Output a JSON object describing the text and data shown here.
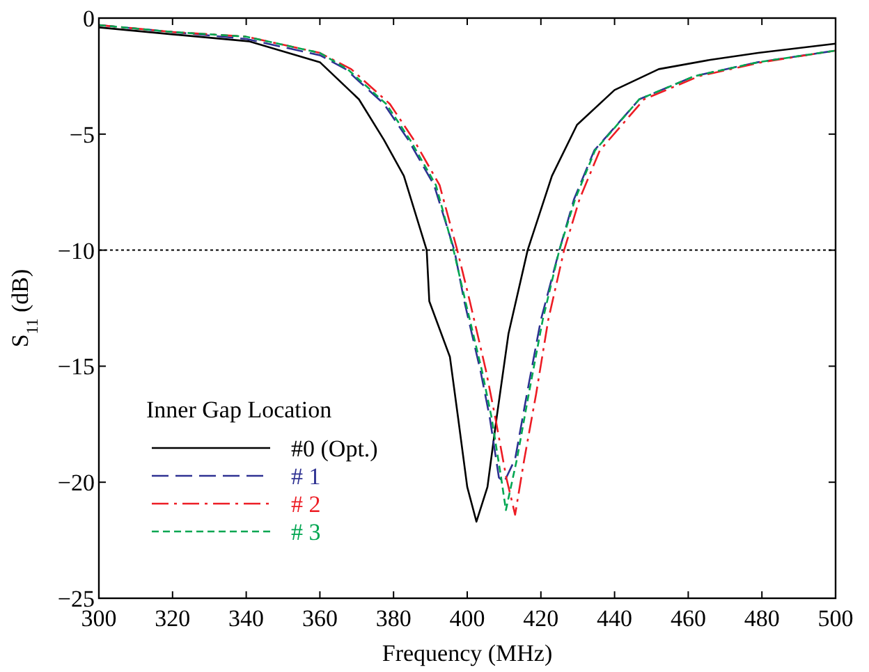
{
  "chart_data": {
    "type": "line",
    "xlabel": "Frequency  (MHz)",
    "ylabel": "S$_{11}$ (dB)",
    "legend_title": "Inner Gap Location",
    "legend": "bottom left",
    "xlim": [
      300,
      500
    ],
    "xticks": [
      300,
      320,
      340,
      360,
      380,
      400,
      420,
      440,
      460,
      480,
      500
    ],
    "ylim": [
      -25,
      0
    ],
    "yticks": [
      -25,
      -20,
      -15,
      -10,
      -5,
      0
    ],
    "grid": false,
    "ref_lines": [
      {
        "axis": "y",
        "value": -10,
        "color": "#000000",
        "line_style": "dotted"
      }
    ],
    "series": [
      {
        "name": "#0 (Opt.)",
        "color": "#000000",
        "line_style": "solid",
        "x": [
          300,
          320,
          340.7,
          360,
          370.6,
          377.4,
          382.8,
          389,
          389.7,
          395.3,
          397.5,
          400,
          402.5,
          405.5,
          408,
          411.2,
          416.4,
          423,
          429.8,
          440,
          452,
          466,
          479,
          500
        ],
        "values": [
          -0.4,
          -0.7,
          -1.0,
          -1.9,
          -3.5,
          -5.25,
          -6.8,
          -10,
          -12.2,
          -14.6,
          -17.2,
          -20.2,
          -21.7,
          -20.2,
          -17.2,
          -13.6,
          -10,
          -6.8,
          -4.6,
          -3.1,
          -2.2,
          -1.8,
          -1.5,
          -1.1
        ]
      },
      {
        "name": "# 1",
        "color": "#2e3192",
        "line_style": "dashed",
        "x": [
          300,
          320,
          340,
          360,
          367,
          377.4,
          384,
          391,
          396.5,
          399.2,
          403.6,
          406.1,
          408.6,
          410,
          413,
          416.2,
          420,
          425,
          429,
          434.5,
          446.7,
          461.7,
          479,
          500
        ],
        "values": [
          -0.3,
          -0.6,
          -0.9,
          -1.6,
          -2.2,
          -3.7,
          -5.25,
          -7.2,
          -10,
          -12.2,
          -15.2,
          -17.2,
          -19.8,
          -20.0,
          -19,
          -16.2,
          -13,
          -10,
          -7.8,
          -5.7,
          -3.5,
          -2.5,
          -1.9,
          -1.4
        ]
      },
      {
        "name": "# 2",
        "color": "#ed1c24",
        "line_style": "dashdot",
        "x": [
          300,
          320,
          340,
          360,
          368.5,
          379,
          385.5,
          392.5,
          397.3,
          400.7,
          405.1,
          407.6,
          410.6,
          413,
          415.5,
          418.7,
          422,
          426.3,
          430.5,
          436,
          448,
          463,
          480,
          500
        ],
        "values": [
          -0.3,
          -0.6,
          -0.8,
          -1.5,
          -2.2,
          -3.7,
          -5.25,
          -7.2,
          -10,
          -12.2,
          -15.2,
          -17.2,
          -19.8,
          -21.4,
          -19,
          -16.2,
          -13,
          -10,
          -7.8,
          -5.7,
          -3.5,
          -2.5,
          -1.9,
          -1.4
        ]
      },
      {
        "name": "# 3",
        "color": "#00a651",
        "line_style": "dotted",
        "x": [
          300,
          320,
          340,
          360,
          367.5,
          378,
          384.5,
          391.5,
          396.3,
          399.5,
          404,
          406.6,
          409.2,
          410.5,
          413.5,
          416.7,
          420.5,
          425,
          429.3,
          434.7,
          446.7,
          461.7,
          479,
          500
        ],
        "values": [
          -0.3,
          -0.6,
          -0.8,
          -1.5,
          -2.2,
          -3.7,
          -5.25,
          -7.2,
          -10,
          -12.2,
          -15.2,
          -17.2,
          -19.8,
          -21.2,
          -19,
          -16.2,
          -13,
          -10,
          -7.8,
          -5.7,
          -3.5,
          -2.5,
          -1.9,
          -1.4
        ]
      }
    ]
  }
}
